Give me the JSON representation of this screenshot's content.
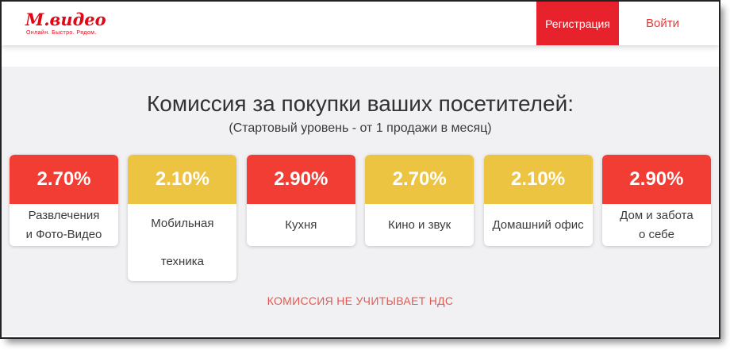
{
  "header": {
    "logo": {
      "brand": "М.видео",
      "tagline": "Онлайн. Быстро. Рядом."
    },
    "register_button": "Регистрация",
    "login_link": "Войти"
  },
  "main": {
    "title": "Комиссия за покупки ваших посетителей:",
    "subtitle": "(Стартовый уровень - от 1 продажи в месяц)",
    "footnote": "КОМИССИЯ НЕ УЧИТЫВАЕТ НДС"
  },
  "cards": [
    {
      "percent": "2.70%",
      "color": "#f23d34",
      "color_name": "red",
      "line1": "Развлечения",
      "line2": "и Фото-Видео"
    },
    {
      "percent": "2.10%",
      "color": "#edc342",
      "color_name": "yellow",
      "line1": "Мобильная",
      "line2": "техника"
    },
    {
      "percent": "2.90%",
      "color": "#f23d34",
      "color_name": "red",
      "line1": "Кухня"
    },
    {
      "percent": "2.70%",
      "color": "#edc342",
      "color_name": "yellow",
      "line1": "Кино и звук"
    },
    {
      "percent": "2.10%",
      "color": "#edc342",
      "color_name": "yellow",
      "line1": "Домашний офис"
    },
    {
      "percent": "2.90%",
      "color": "#f23d34",
      "color_name": "red",
      "line1": "Дом и забота",
      "line2": "о себе"
    }
  ],
  "colors": {
    "brand_red": "#e30615",
    "register_button_red": "#e8222d",
    "login_link_red": "#e23b3b",
    "card_red": "#f23d34",
    "card_yellow": "#edc342",
    "footnote_red": "#e05a52",
    "main_background": "#f1f1f4"
  }
}
